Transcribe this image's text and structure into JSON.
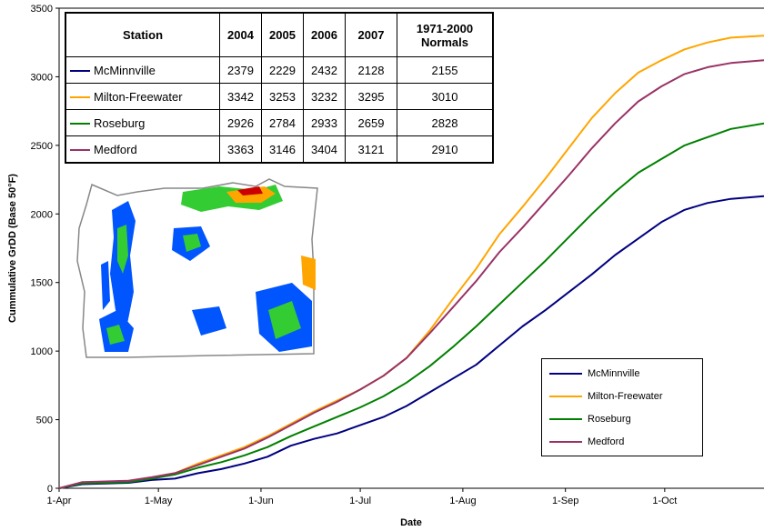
{
  "chart_data": {
    "type": "line",
    "xlabel": "Date",
    "ylabel": "Cummulative GrDD (Base 50°F)",
    "ylim": [
      0,
      3500
    ],
    "yticks": [
      0,
      500,
      1000,
      1500,
      2000,
      2500,
      3000,
      3500
    ],
    "xlim": [
      "2007-04-01",
      "2007-10-31"
    ],
    "xticks": [
      {
        "date": "2007-04-01",
        "label": "1-Apr"
      },
      {
        "date": "2007-05-01",
        "label": "1-May"
      },
      {
        "date": "2007-06-01",
        "label": "1-Jun"
      },
      {
        "date": "2007-07-01",
        "label": "1-Jul"
      },
      {
        "date": "2007-08-01",
        "label": "1-Aug"
      },
      {
        "date": "2007-09-01",
        "label": "1-Sep"
      },
      {
        "date": "2007-10-01",
        "label": "1-Oct"
      }
    ],
    "grid": false,
    "legend_position": "bottom-right",
    "series": [
      {
        "name": "McMinnville",
        "color": "#000080",
        "points": [
          [
            "2007-04-01",
            0
          ],
          [
            "2007-04-08",
            30
          ],
          [
            "2007-04-15",
            35
          ],
          [
            "2007-04-22",
            40
          ],
          [
            "2007-04-29",
            60
          ],
          [
            "2007-05-06",
            70
          ],
          [
            "2007-05-13",
            110
          ],
          [
            "2007-05-20",
            140
          ],
          [
            "2007-05-27",
            180
          ],
          [
            "2007-06-03",
            230
          ],
          [
            "2007-06-10",
            310
          ],
          [
            "2007-06-17",
            360
          ],
          [
            "2007-06-24",
            400
          ],
          [
            "2007-07-01",
            460
          ],
          [
            "2007-07-08",
            520
          ],
          [
            "2007-07-15",
            600
          ],
          [
            "2007-07-22",
            700
          ],
          [
            "2007-07-29",
            800
          ],
          [
            "2007-08-05",
            900
          ],
          [
            "2007-08-12",
            1040
          ],
          [
            "2007-08-19",
            1180
          ],
          [
            "2007-08-26",
            1300
          ],
          [
            "2007-09-02",
            1430
          ],
          [
            "2007-09-09",
            1560
          ],
          [
            "2007-09-16",
            1700
          ],
          [
            "2007-09-23",
            1820
          ],
          [
            "2007-09-30",
            1940
          ],
          [
            "2007-10-07",
            2030
          ],
          [
            "2007-10-14",
            2080
          ],
          [
            "2007-10-21",
            2110
          ],
          [
            "2007-10-31",
            2130
          ]
        ]
      },
      {
        "name": "Milton-Freewater",
        "color": "#FFA500",
        "points": [
          [
            "2007-04-01",
            0
          ],
          [
            "2007-04-08",
            40
          ],
          [
            "2007-04-15",
            45
          ],
          [
            "2007-04-22",
            55
          ],
          [
            "2007-04-29",
            80
          ],
          [
            "2007-05-06",
            110
          ],
          [
            "2007-05-13",
            180
          ],
          [
            "2007-05-20",
            240
          ],
          [
            "2007-05-27",
            300
          ],
          [
            "2007-06-03",
            380
          ],
          [
            "2007-06-10",
            470
          ],
          [
            "2007-06-17",
            560
          ],
          [
            "2007-06-24",
            640
          ],
          [
            "2007-07-01",
            720
          ],
          [
            "2007-07-08",
            820
          ],
          [
            "2007-07-15",
            950
          ],
          [
            "2007-07-22",
            1150
          ],
          [
            "2007-07-29",
            1380
          ],
          [
            "2007-08-05",
            1600
          ],
          [
            "2007-08-12",
            1850
          ],
          [
            "2007-08-19",
            2050
          ],
          [
            "2007-08-26",
            2260
          ],
          [
            "2007-09-02",
            2480
          ],
          [
            "2007-09-09",
            2700
          ],
          [
            "2007-09-16",
            2880
          ],
          [
            "2007-09-23",
            3030
          ],
          [
            "2007-09-30",
            3120
          ],
          [
            "2007-10-07",
            3200
          ],
          [
            "2007-10-14",
            3250
          ],
          [
            "2007-10-21",
            3285
          ],
          [
            "2007-10-31",
            3300
          ]
        ]
      },
      {
        "name": "Roseburg",
        "color": "#008000",
        "points": [
          [
            "2007-04-01",
            0
          ],
          [
            "2007-04-08",
            35
          ],
          [
            "2007-04-15",
            40
          ],
          [
            "2007-04-22",
            45
          ],
          [
            "2007-04-29",
            70
          ],
          [
            "2007-05-06",
            100
          ],
          [
            "2007-05-13",
            150
          ],
          [
            "2007-05-20",
            190
          ],
          [
            "2007-05-27",
            240
          ],
          [
            "2007-06-03",
            300
          ],
          [
            "2007-06-10",
            380
          ],
          [
            "2007-06-17",
            450
          ],
          [
            "2007-06-24",
            520
          ],
          [
            "2007-07-01",
            590
          ],
          [
            "2007-07-08",
            670
          ],
          [
            "2007-07-15",
            770
          ],
          [
            "2007-07-22",
            890
          ],
          [
            "2007-07-29",
            1030
          ],
          [
            "2007-08-05",
            1180
          ],
          [
            "2007-08-12",
            1340
          ],
          [
            "2007-08-19",
            1500
          ],
          [
            "2007-08-26",
            1660
          ],
          [
            "2007-09-02",
            1830
          ],
          [
            "2007-09-09",
            2000
          ],
          [
            "2007-09-16",
            2160
          ],
          [
            "2007-09-23",
            2300
          ],
          [
            "2007-09-30",
            2400
          ],
          [
            "2007-10-07",
            2500
          ],
          [
            "2007-10-14",
            2560
          ],
          [
            "2007-10-21",
            2620
          ],
          [
            "2007-10-31",
            2660
          ]
        ]
      },
      {
        "name": "Medford",
        "color": "#993366",
        "points": [
          [
            "2007-04-01",
            0
          ],
          [
            "2007-04-08",
            45
          ],
          [
            "2007-04-15",
            50
          ],
          [
            "2007-04-22",
            55
          ],
          [
            "2007-04-29",
            80
          ],
          [
            "2007-05-06",
            110
          ],
          [
            "2007-05-13",
            170
          ],
          [
            "2007-05-20",
            230
          ],
          [
            "2007-05-27",
            290
          ],
          [
            "2007-06-03",
            370
          ],
          [
            "2007-06-10",
            460
          ],
          [
            "2007-06-17",
            550
          ],
          [
            "2007-06-24",
            630
          ],
          [
            "2007-07-01",
            720
          ],
          [
            "2007-07-08",
            820
          ],
          [
            "2007-07-15",
            950
          ],
          [
            "2007-07-22",
            1130
          ],
          [
            "2007-07-29",
            1320
          ],
          [
            "2007-08-05",
            1510
          ],
          [
            "2007-08-12",
            1720
          ],
          [
            "2007-08-19",
            1900
          ],
          [
            "2007-08-26",
            2090
          ],
          [
            "2007-09-02",
            2280
          ],
          [
            "2007-09-09",
            2480
          ],
          [
            "2007-09-16",
            2660
          ],
          [
            "2007-09-23",
            2820
          ],
          [
            "2007-09-30",
            2930
          ],
          [
            "2007-10-07",
            3020
          ],
          [
            "2007-10-14",
            3070
          ],
          [
            "2007-10-21",
            3100
          ],
          [
            "2007-10-31",
            3120
          ]
        ]
      }
    ]
  },
  "table": {
    "headers": [
      "Station",
      "2004",
      "2005",
      "2006",
      "2007",
      "1971-2000 Normals"
    ],
    "rows": [
      {
        "station": "McMinnville",
        "color": "#000080",
        "values": [
          "2379",
          "2229",
          "2432",
          "2128",
          "2155"
        ]
      },
      {
        "station": "Milton-Freewater",
        "color": "#FFA500",
        "values": [
          "3342",
          "3253",
          "3232",
          "3295",
          "3010"
        ]
      },
      {
        "station": "Roseburg",
        "color": "#008000",
        "values": [
          "2926",
          "2784",
          "2933",
          "2659",
          "2828"
        ]
      },
      {
        "station": "Medford",
        "color": "#993366",
        "values": [
          "3363",
          "3146",
          "3404",
          "3121",
          "2910"
        ]
      }
    ]
  },
  "inset_map": {
    "icon": "oregon-degree-day-map-icon",
    "colors": {
      "low": "#0055FF",
      "mid": "#33CC33",
      "high": "#FFA500",
      "peak": "#CC0000",
      "outline": "#888888"
    }
  }
}
